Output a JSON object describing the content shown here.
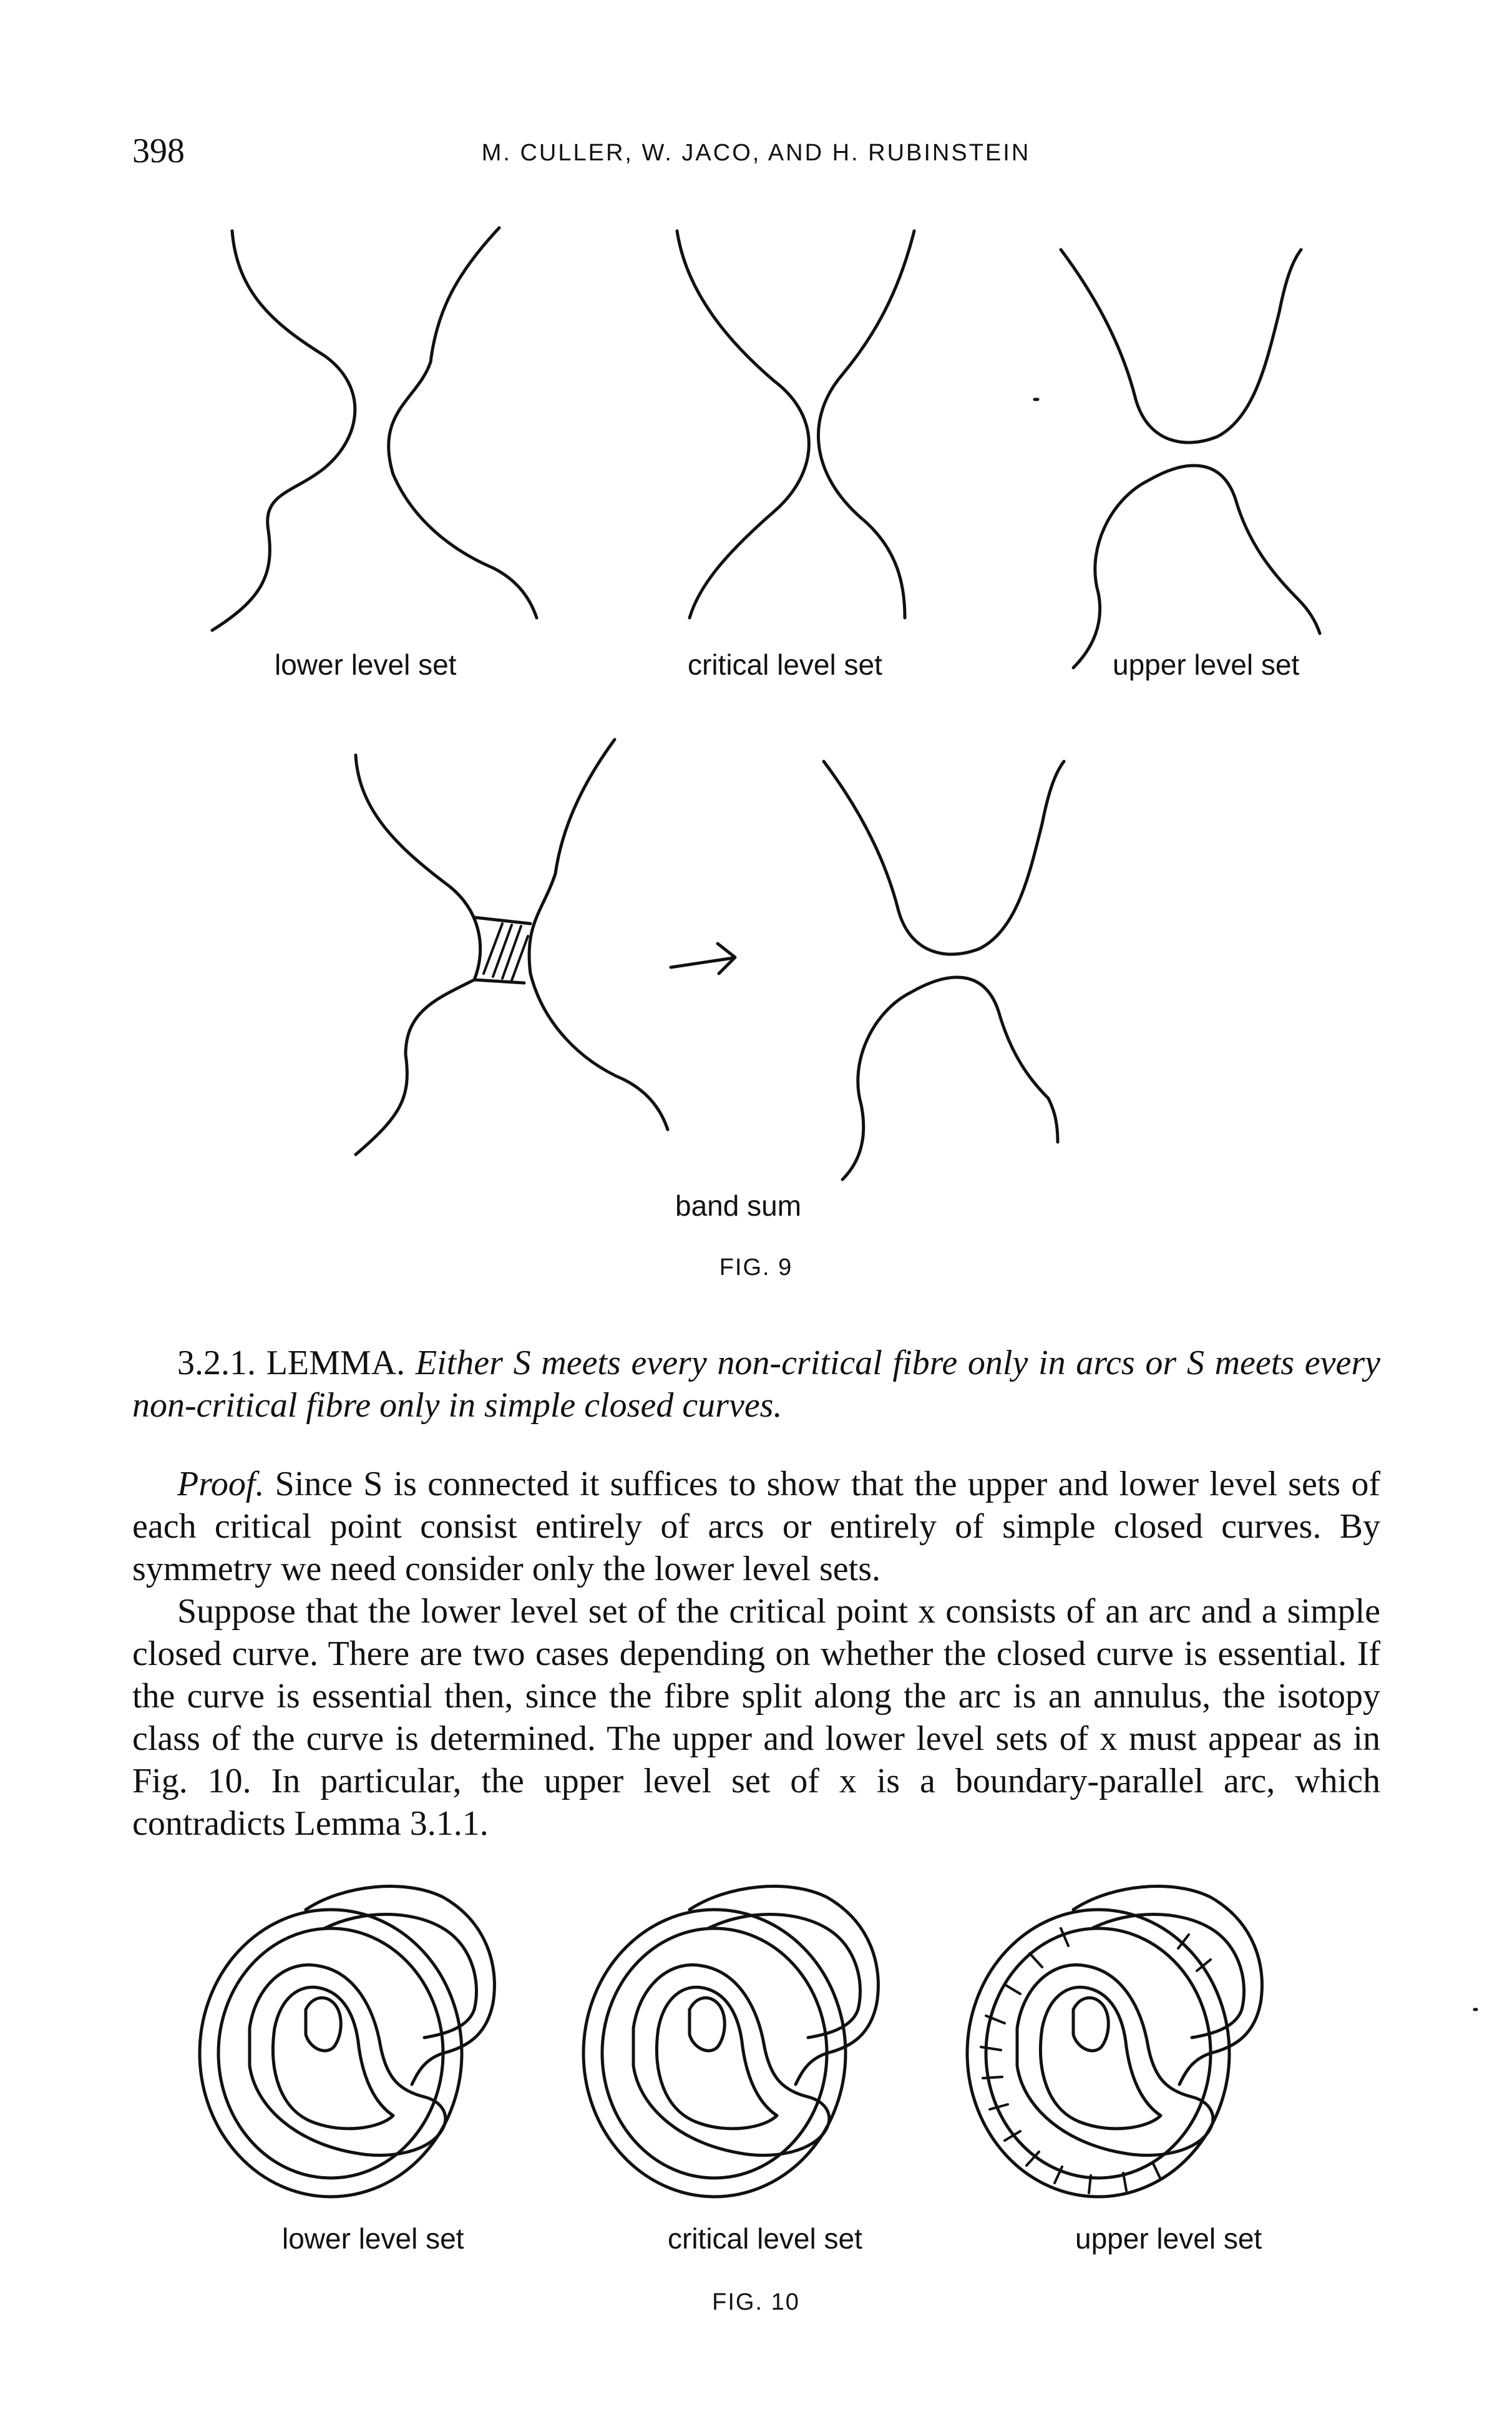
{
  "header": {
    "page_number": "398",
    "running_title": "M. CULLER, W. JACO, AND H. RUBINSTEIN"
  },
  "figure9": {
    "labels": {
      "lower": "lower level set",
      "critical": "critical level set",
      "upper": "upper level set",
      "band": "band sum"
    },
    "caption": "FIG. 9"
  },
  "lemma": {
    "number": "3.2.1.",
    "name": "LEMMA.",
    "statement": "Either S meets every non-critical fibre only in arcs or S meets every non-critical fibre only in simple closed curves."
  },
  "proof": {
    "lead": "Proof.",
    "p1": "Since S is connected it suffices to show that the upper and lower level sets of each critical point consist entirely of arcs or entirely of simple closed curves. By symmetry we need consider only the lower level sets.",
    "p2": "Suppose that the lower level set of the critical point x consists of an arc and a simple closed curve. There are two cases depending on whether the closed curve is essential. If the curve is essential then, since the fibre split along the arc is an annulus, the isotopy class of the curve is determined. The upper and lower level sets of x must appear as in Fig. 10. In particular, the upper level set of x is a boundary-parallel arc, which contradicts Lemma 3.1.1."
  },
  "figure10": {
    "labels": {
      "lower": "lower level set",
      "critical": "critical level set",
      "upper": "upper level set"
    },
    "caption": "FIG. 10"
  }
}
